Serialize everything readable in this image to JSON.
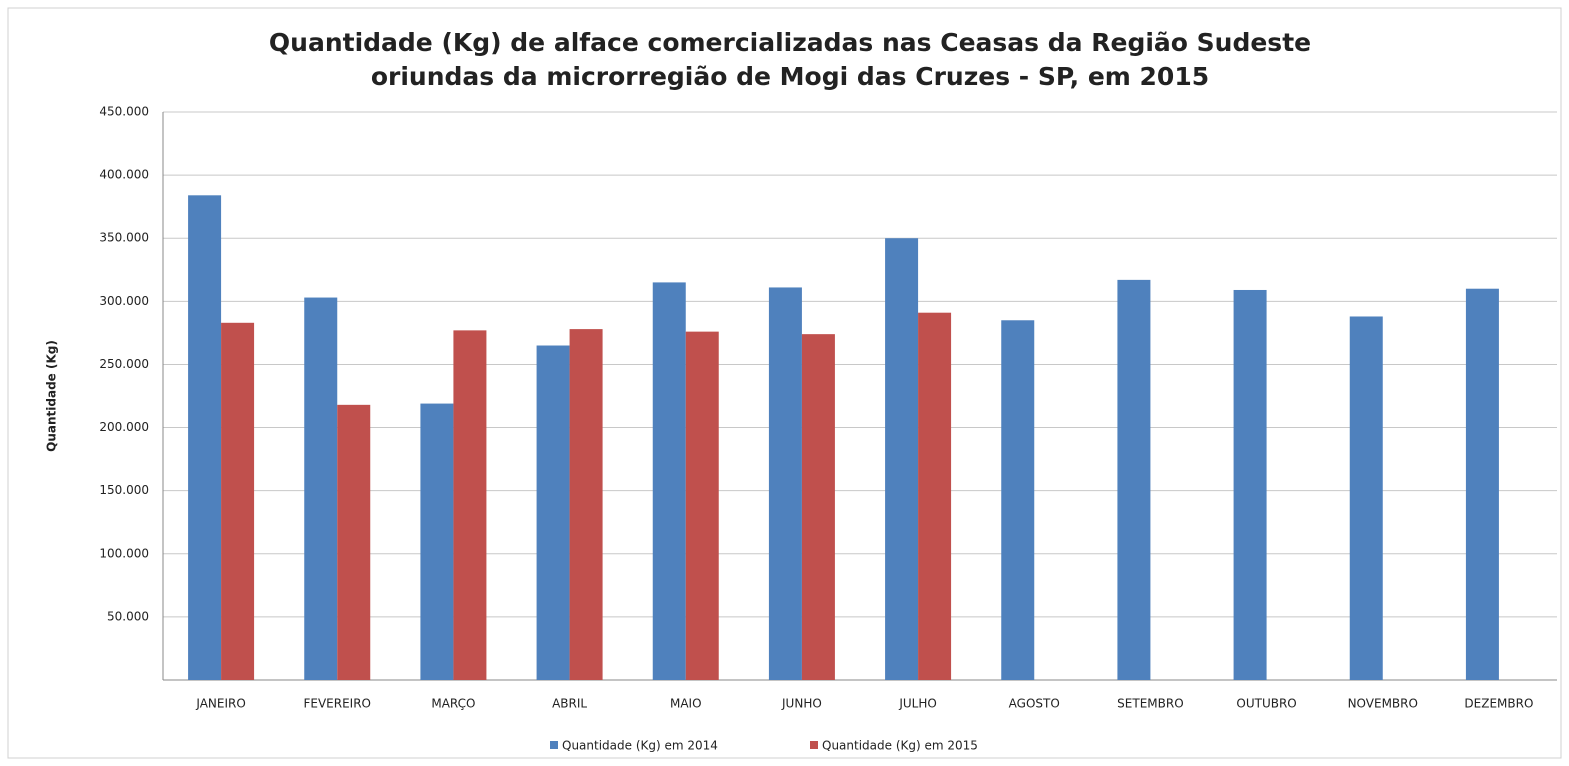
{
  "chart_data": {
    "type": "bar",
    "title": [
      "Quantidade (Kg) de alface comercializadas nas Ceasas da Região Sudeste",
      "oriundas da microrregião de Mogi das Cruzes - SP, em 2015"
    ],
    "y_label": "Quantidade (Kg)",
    "categories": [
      "JANEIRO",
      "FEVEREIRO",
      "MARÇO",
      "ABRIL",
      "MAIO",
      "JUNHO",
      "JULHO",
      "AGOSTO",
      "SETEMBRO",
      "OUTUBRO",
      "NOVEMBRO",
      "DEZEMBRO"
    ],
    "series": [
      {
        "name": "Quantidade (Kg) em 2014",
        "color": "#4f81bd",
        "values": [
          384000,
          303000,
          219000,
          265000,
          315000,
          311000,
          350000,
          285000,
          317000,
          309000,
          288000,
          310000
        ]
      },
      {
        "name": "Quantidade (Kg) em 2015",
        "color": "#c0504d",
        "values": [
          283000,
          218000,
          277000,
          278000,
          276000,
          274000,
          291000,
          null,
          null,
          null,
          null,
          null
        ]
      }
    ],
    "ylim": [
      0,
      450000
    ],
    "yticks": [
      {
        "value": 50000,
        "label": "50.000"
      },
      {
        "value": 100000,
        "label": "100.000"
      },
      {
        "value": 150000,
        "label": "150.000"
      },
      {
        "value": 200000,
        "label": "200.000"
      },
      {
        "value": 250000,
        "label": "250.000"
      },
      {
        "value": 300000,
        "label": "300.000"
      },
      {
        "value": 350000,
        "label": "350.000"
      },
      {
        "value": 400000,
        "label": "400.000"
      },
      {
        "value": 450000,
        "label": "450.000"
      }
    ],
    "grid": true,
    "legend": "bottom"
  }
}
